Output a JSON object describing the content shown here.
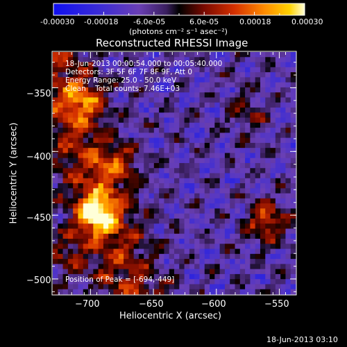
{
  "colorbar": {
    "ticks": [
      "-0.00030",
      "-0.00018",
      "-6.0e-05",
      "6.0e-05",
      "0.00018",
      "0.00030"
    ],
    "unit_label": "(photons cm⁻² s⁻¹ asec⁻²)",
    "range": [
      -0.0003,
      0.0003
    ]
  },
  "chart_data": {
    "type": "heatmap",
    "title": "Reconstructed RHESSI Image",
    "xlabel": "Heliocentric X (arcsec)",
    "ylabel": "Heliocentric Y (arcsec)",
    "xlim": [
      -730,
      -537
    ],
    "ylim": [
      -512,
      -322
    ],
    "x_ticks": [
      -700,
      -650,
      -600,
      -550
    ],
    "y_ticks": [
      -350,
      -400,
      -450,
      -500
    ],
    "x_tick_labels": [
      "−700",
      "−650",
      "−600",
      "−550"
    ],
    "y_tick_labels": [
      "−350",
      "−400",
      "−450",
      "−500"
    ],
    "annotations": [
      "18-Jun-2013 00:00:54.000 to 00:05:40.000",
      "Detectors: 3F 5F 6F 7F 8F 9F, Att 0",
      "Energy Range: 25.0 - 50.0 keV",
      "Clean    Total counts: 7.46E+03"
    ],
    "peak_label": "Position of Peak = [-694,-449]",
    "peak_position": [
      -694,
      -449
    ],
    "hot_regions": [
      {
        "x": -694,
        "y": -449,
        "value": 0.0003
      },
      {
        "x": -705,
        "y": -360,
        "value": 0.00018
      },
      {
        "x": -680,
        "y": -410,
        "value": 0.00016
      },
      {
        "x": -560,
        "y": -455,
        "value": 0.00022
      },
      {
        "x": -720,
        "y": -480,
        "value": 0.00012
      },
      {
        "x": -575,
        "y": -370,
        "value": 0.0001
      }
    ],
    "grid": false
  },
  "footer_timestamp": "18-Jun-2013 03:10"
}
